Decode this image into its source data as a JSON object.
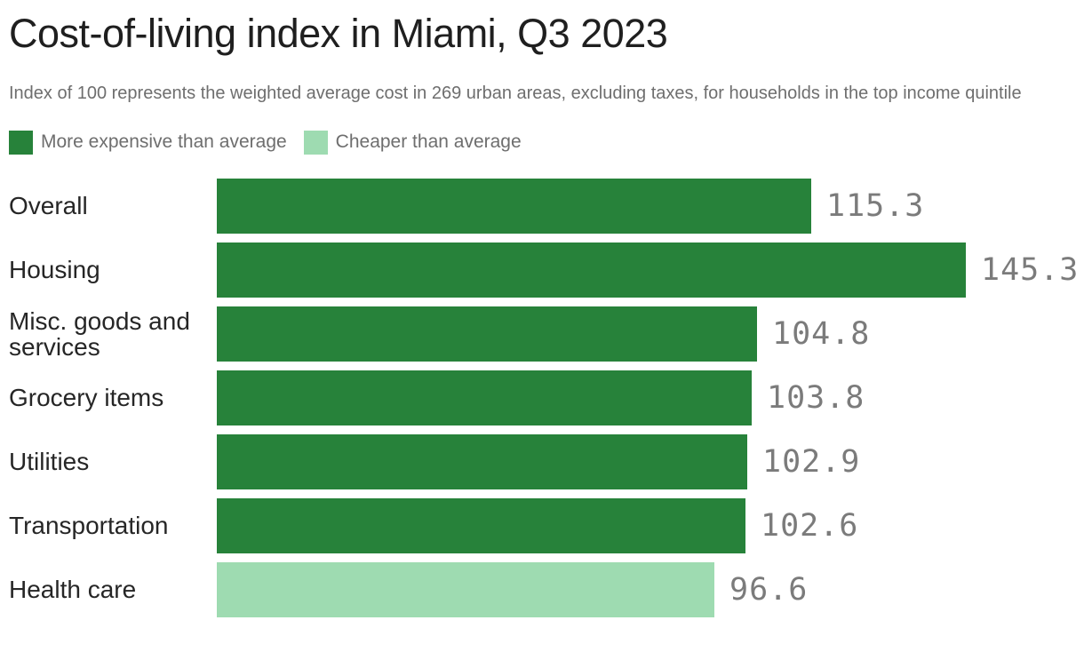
{
  "header": {
    "title": "Cost-of-living index in Miami, Q3 2023",
    "subtitle": "Index of 100 represents the weighted average cost in 269 urban areas, excluding taxes, for households in the top income quintile"
  },
  "legend": {
    "items": [
      {
        "label": "More expensive than average",
        "color": "#27823A"
      },
      {
        "label": "Cheaper than average",
        "color": "#9EDBB1"
      }
    ]
  },
  "chart_data": {
    "type": "bar",
    "orientation": "horizontal",
    "title": "Cost-of-living index in Miami, Q3 2023",
    "categories": [
      "Overall",
      "Housing",
      "Misc. goods and services",
      "Grocery items",
      "Utilities",
      "Transportation",
      "Health care"
    ],
    "values": [
      115.3,
      145.3,
      104.8,
      103.8,
      102.9,
      102.6,
      96.6
    ],
    "value_labels": [
      "115.3",
      "145.3",
      "104.8",
      "103.8",
      "102.9",
      "102.6",
      "96.6"
    ],
    "bar_color_keys": [
      "expensive",
      "expensive",
      "expensive",
      "expensive",
      "expensive",
      "expensive",
      "cheaper"
    ],
    "colors": {
      "expensive": "#27823A",
      "cheaper": "#9EDBB1"
    },
    "xlim": [
      0,
      145.3
    ],
    "grid": false,
    "legend_position": "top",
    "value_label_position": "outside-right"
  }
}
